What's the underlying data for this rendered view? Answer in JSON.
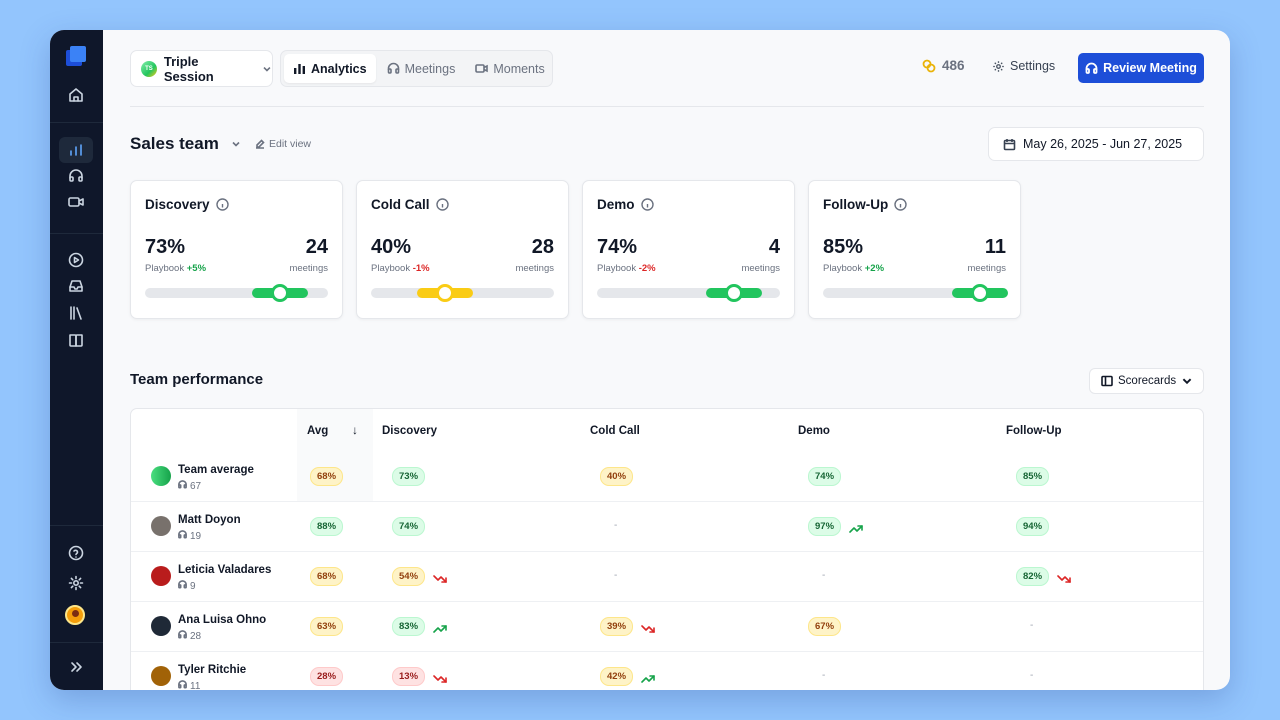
{
  "workspace": {
    "initials": "TS",
    "name": "Triple Session"
  },
  "tabs": [
    {
      "label": "Analytics",
      "icon": "bar-chart-icon",
      "active": true
    },
    {
      "label": "Meetings",
      "icon": "headset-icon",
      "active": false
    },
    {
      "label": "Moments",
      "icon": "video-icon",
      "active": false
    }
  ],
  "header": {
    "coins": "486",
    "settings_label": "Settings",
    "review_label": "Review Meeting"
  },
  "team": {
    "title": "Sales team",
    "edit_label": "Edit view",
    "date_range": "May 26, 2025 - Jun 27, 2025"
  },
  "cards": [
    {
      "title": "Discovery",
      "pct": "73%",
      "playbook_label": "Playbook",
      "delta": "+5%",
      "delta_dir": "pos",
      "count": "24",
      "count_label": "meetings",
      "level": 0.73,
      "color": "#22c55e"
    },
    {
      "title": "Cold Call",
      "pct": "40%",
      "playbook_label": "Playbook",
      "delta": "-1%",
      "delta_dir": "neg",
      "count": "28",
      "count_label": "meetings",
      "level": 0.4,
      "color": "#facc15"
    },
    {
      "title": "Demo",
      "pct": "74%",
      "playbook_label": "Playbook",
      "delta": "-2%",
      "delta_dir": "neg",
      "count": "4",
      "count_label": "meetings",
      "level": 0.74,
      "color": "#22c55e"
    },
    {
      "title": "Follow-Up",
      "pct": "85%",
      "playbook_label": "Playbook",
      "delta": "+2%",
      "delta_dir": "pos",
      "count": "11",
      "count_label": "meetings",
      "level": 0.85,
      "color": "#22c55e"
    }
  ],
  "performance": {
    "title": "Team performance",
    "scorecards_label": "Scorecards",
    "columns": [
      "Avg",
      "Discovery",
      "Cold Call",
      "Demo",
      "Follow-Up"
    ],
    "rows": [
      {
        "name": "Team average",
        "meetings": "67",
        "avatar": "gradient",
        "avg": {
          "v": "68%",
          "c": "y"
        },
        "cells": [
          {
            "v": "73%",
            "c": "g"
          },
          {
            "v": "40%",
            "c": "y"
          },
          {
            "v": "74%",
            "c": "g"
          },
          {
            "v": "85%",
            "c": "g"
          }
        ]
      },
      {
        "name": "Matt Doyon",
        "meetings": "19",
        "avatar": "#78716c",
        "avg": {
          "v": "88%",
          "c": "g"
        },
        "cells": [
          {
            "v": "74%",
            "c": "g"
          },
          {
            "v": "-"
          },
          {
            "v": "97%",
            "c": "g",
            "t": "up"
          },
          {
            "v": "94%",
            "c": "g"
          }
        ]
      },
      {
        "name": "Leticia Valadares",
        "meetings": "9",
        "avatar": "#b91c1c",
        "avg": {
          "v": "68%",
          "c": "y"
        },
        "cells": [
          {
            "v": "54%",
            "c": "y",
            "t": "down"
          },
          {
            "v": "-"
          },
          {
            "v": "-"
          },
          {
            "v": "82%",
            "c": "g",
            "t": "down"
          }
        ]
      },
      {
        "name": "Ana Luisa Ohno",
        "meetings": "28",
        "avatar": "#1f2937",
        "avg": {
          "v": "63%",
          "c": "y"
        },
        "cells": [
          {
            "v": "83%",
            "c": "g",
            "t": "up"
          },
          {
            "v": "39%",
            "c": "y",
            "t": "down"
          },
          {
            "v": "67%",
            "c": "y"
          },
          {
            "v": "-"
          }
        ]
      },
      {
        "name": "Tyler Ritchie",
        "meetings": "11",
        "avatar": "#a16207",
        "avg": {
          "v": "28%",
          "c": "r"
        },
        "cells": [
          {
            "v": "13%",
            "c": "r",
            "t": "down"
          },
          {
            "v": "42%",
            "c": "y",
            "t": "up"
          },
          {
            "v": "-"
          },
          {
            "v": "-"
          }
        ]
      }
    ]
  }
}
